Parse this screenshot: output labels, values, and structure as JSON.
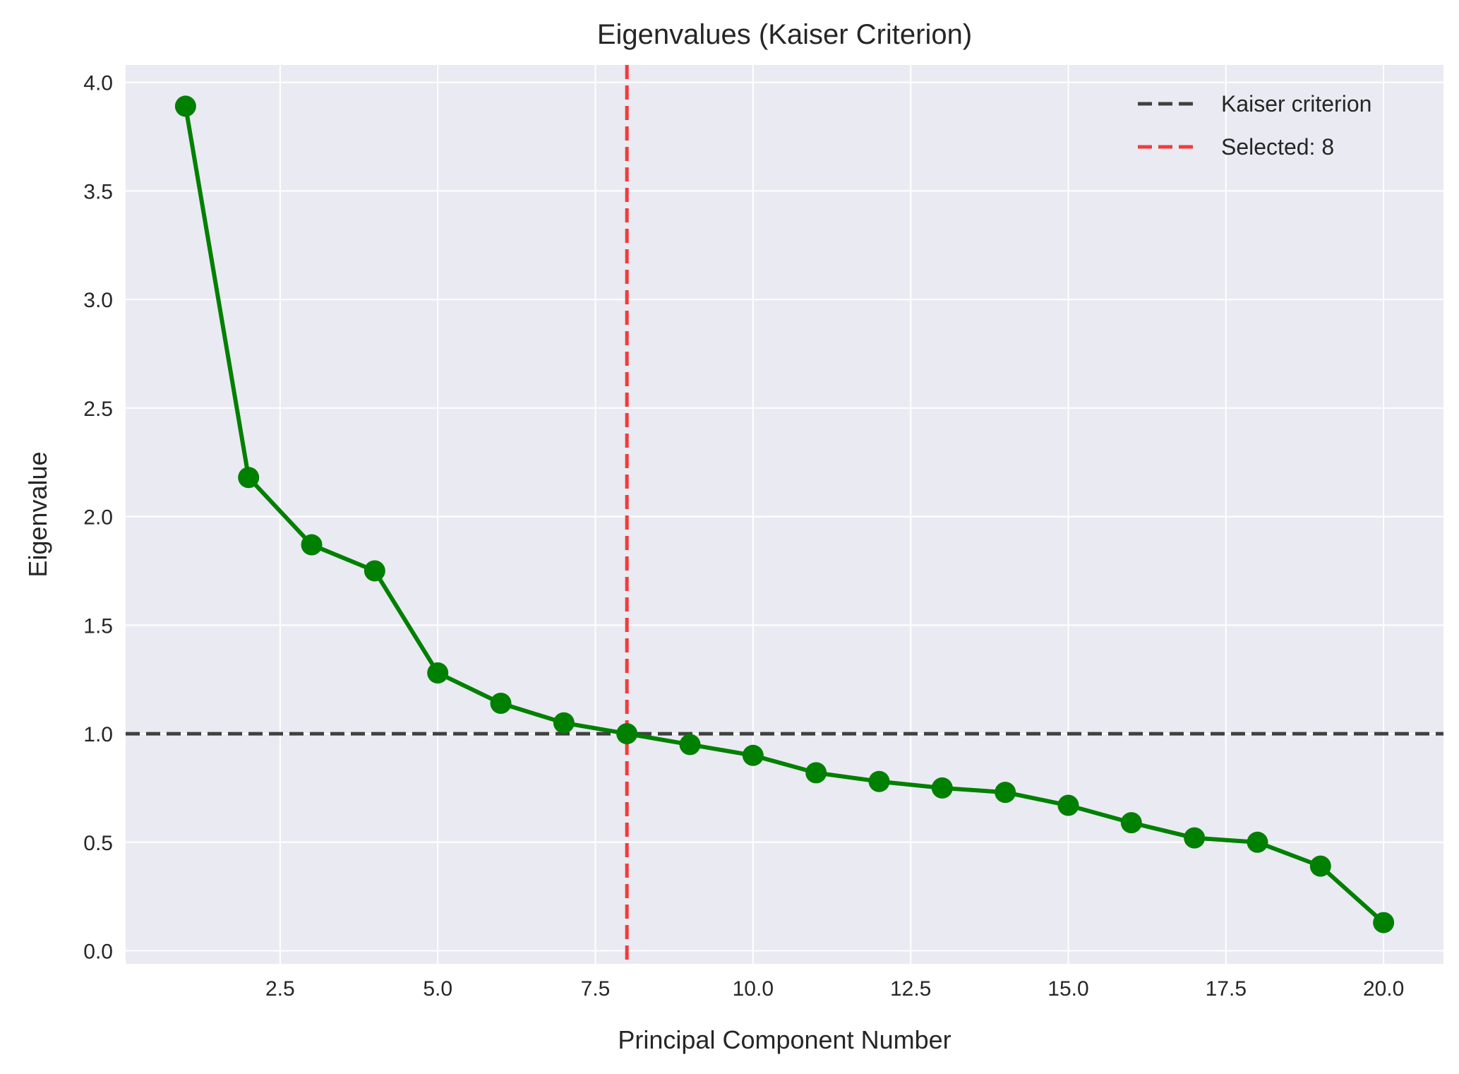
{
  "chart_data": {
    "type": "line",
    "title": "Eigenvalues (Kaiser Criterion)",
    "xlabel": "Principal Component Number",
    "ylabel": "Eigenvalue",
    "x": [
      1,
      2,
      3,
      4,
      5,
      6,
      7,
      8,
      9,
      10,
      11,
      12,
      13,
      14,
      15,
      16,
      17,
      18,
      19,
      20
    ],
    "series": [
      {
        "values": [
          3.89,
          2.18,
          1.87,
          1.75,
          1.28,
          1.14,
          1.05,
          1.0,
          0.95,
          0.9,
          0.82,
          0.78,
          0.75,
          0.73,
          0.67,
          0.59,
          0.52,
          0.5,
          0.39,
          0.13
        ],
        "color": "#008000",
        "marker": "circle"
      }
    ],
    "reference_lines": [
      {
        "orientation": "horizontal",
        "value": 1.0,
        "label": "Kaiser criterion",
        "color": "#404040",
        "style": "dashed"
      },
      {
        "orientation": "vertical",
        "value": 8,
        "label": "Selected: 8",
        "color": "#f03c3c",
        "style": "dashed"
      }
    ],
    "xlim": [
      0.05,
      20.95
    ],
    "ylim": [
      -0.06,
      4.08
    ],
    "xticks": [
      2.5,
      5.0,
      7.5,
      10.0,
      12.5,
      15.0,
      17.5,
      20.0
    ],
    "xtick_labels": [
      "2.5",
      "5.0",
      "7.5",
      "10.0",
      "12.5",
      "15.0",
      "17.5",
      "20.0"
    ],
    "yticks": [
      0.0,
      0.5,
      1.0,
      1.5,
      2.0,
      2.5,
      3.0,
      3.5,
      4.0
    ],
    "ytick_labels": [
      "0.0",
      "0.5",
      "1.0",
      "1.5",
      "2.0",
      "2.5",
      "3.0",
      "3.5",
      "4.0"
    ],
    "grid": true,
    "legend_position": "top-right",
    "background_color": "#eaeaf2",
    "grid_color": "#ffffff"
  }
}
